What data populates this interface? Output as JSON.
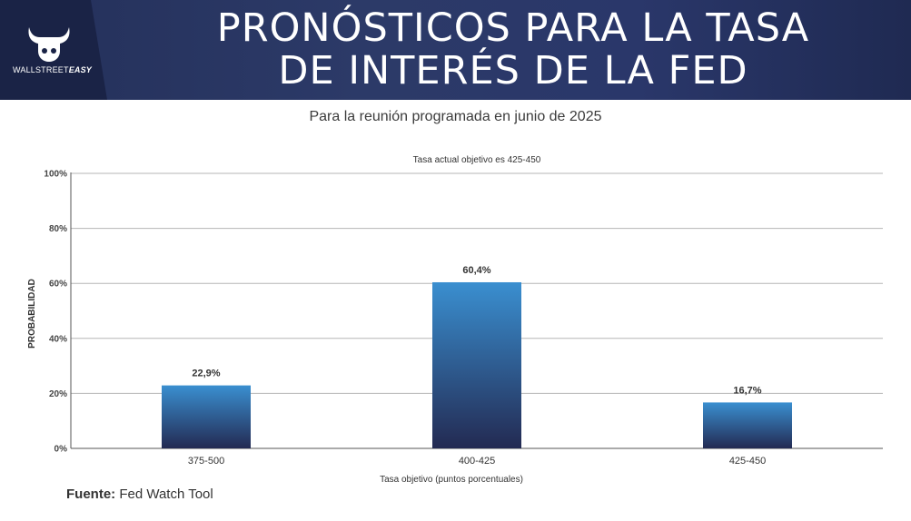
{
  "header": {
    "title_line1": "PRONÓSTICOS PARA LA TASA",
    "title_line2": "DE INTERÉS DE LA FED",
    "logo_text_regular": "WALLSTREET",
    "logo_text_bold": "EASY"
  },
  "subtitle": "Para la reunión programada en junio de 2025",
  "source": {
    "label": "Fuente:",
    "value": "Fed Watch Tool"
  },
  "colors": {
    "header_bg": "#2c3a68",
    "bar_top": "#3a8fd0",
    "bar_bottom": "#232a52"
  },
  "chart_data": {
    "type": "bar",
    "title": "Tasa actual objetivo es 425-450",
    "xlabel": "Tasa objetivo (puntos porcentuales)",
    "ylabel": "PROBABILIDAD",
    "categories": [
      "375-500",
      "400-425",
      "425-450"
    ],
    "values": [
      22.9,
      60.4,
      16.7
    ],
    "value_labels": [
      "22,9%",
      "60,4%",
      "16,7%"
    ],
    "ylim": [
      0,
      100
    ],
    "yticks": [
      0,
      20,
      40,
      60,
      80,
      100
    ],
    "ytick_labels": [
      "0%",
      "20%",
      "40%",
      "60%",
      "80%",
      "100%"
    ],
    "grid": true
  }
}
